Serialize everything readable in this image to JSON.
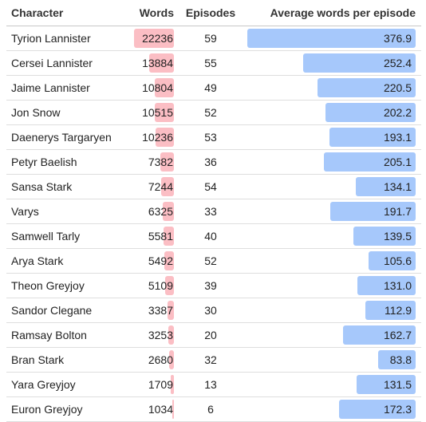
{
  "table": {
    "headers": {
      "character": "Character",
      "words": "Words",
      "episodes": "Episodes",
      "avg": "Average words per episode"
    },
    "max_words": 22236,
    "max_avg": 376.9,
    "colors": {
      "words_bar": "#fbbec4",
      "avg_bar": "#a6c8fb"
    },
    "rows": [
      {
        "character": "Tyrion Lannister",
        "words": "22236",
        "episodes": "59",
        "avg": "376.9"
      },
      {
        "character": "Cersei Lannister",
        "words": "13884",
        "episodes": "55",
        "avg": "252.4"
      },
      {
        "character": "Jaime Lannister",
        "words": "10804",
        "episodes": "49",
        "avg": "220.5"
      },
      {
        "character": "Jon Snow",
        "words": "10515",
        "episodes": "52",
        "avg": "202.2"
      },
      {
        "character": "Daenerys Targaryen",
        "words": "10236",
        "episodes": "53",
        "avg": "193.1"
      },
      {
        "character": "Petyr Baelish",
        "words": "7382",
        "episodes": "36",
        "avg": "205.1"
      },
      {
        "character": "Sansa Stark",
        "words": "7244",
        "episodes": "54",
        "avg": "134.1"
      },
      {
        "character": "Varys",
        "words": "6325",
        "episodes": "33",
        "avg": "191.7"
      },
      {
        "character": "Samwell Tarly",
        "words": "5581",
        "episodes": "40",
        "avg": "139.5"
      },
      {
        "character": "Arya Stark",
        "words": "5492",
        "episodes": "52",
        "avg": "105.6"
      },
      {
        "character": "Theon Greyjoy",
        "words": "5109",
        "episodes": "39",
        "avg": "131.0"
      },
      {
        "character": "Sandor Clegane",
        "words": "3387",
        "episodes": "30",
        "avg": "112.9"
      },
      {
        "character": "Ramsay Bolton",
        "words": "3253",
        "episodes": "20",
        "avg": "162.7"
      },
      {
        "character": "Bran Stark",
        "words": "2680",
        "episodes": "32",
        "avg": "83.8"
      },
      {
        "character": "Yara Greyjoy",
        "words": "1709",
        "episodes": "13",
        "avg": "131.5"
      },
      {
        "character": "Euron Greyjoy",
        "words": "1034",
        "episodes": "6",
        "avg": "172.3"
      }
    ]
  }
}
